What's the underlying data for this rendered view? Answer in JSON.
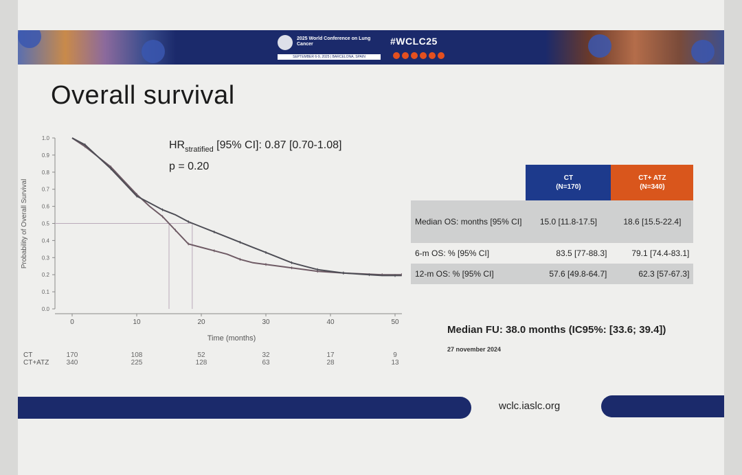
{
  "banner": {
    "conference_name": "2025 World Conference on Lung Cancer",
    "dates_location": "SEPTEMBER 6-9, 2025 | BARCELONA, SPAIN",
    "hashtag": "#WCLC25",
    "social_icons": [
      "facebook-icon",
      "linkedin-icon",
      "x-icon",
      "instagram-icon",
      "youtube-icon",
      "flickr-icon"
    ],
    "colors": {
      "navy": "#1b2a6b",
      "accent": "#e3501f"
    }
  },
  "slide": {
    "title": "Overall survival",
    "median_fu": "Median FU: 38.0 months (IC95%: [33.6; 39.4])",
    "date": "27 november 2024",
    "url": "wclc.iaslc.org"
  },
  "chart_data": {
    "type": "line",
    "title": "",
    "xlabel": "Time (months)",
    "ylabel": "Probability of Overall Survival",
    "xlim": [
      0,
      52
    ],
    "ylim": [
      0,
      1.0
    ],
    "xticks": [
      0,
      10,
      20,
      30,
      40,
      50
    ],
    "yticks": [
      "0.0",
      "0.1",
      "0.2",
      "0.3",
      "0.4",
      "0.5",
      "0.6",
      "0.7",
      "0.8",
      "0.9",
      "1.0"
    ],
    "grid": false,
    "hr_label": "HR",
    "hr_subscript": "stratified",
    "hr_value": " [95% CI]: 0.87 [0.70-1.08]",
    "p_value": "p = 0.20",
    "median_guides": {
      "y": 0.5,
      "x": [
        15.0,
        18.6
      ]
    },
    "series": [
      {
        "color": "#6e5a64",
        "x": [
          0,
          2,
          4,
          6,
          8,
          10,
          12,
          14,
          15,
          16,
          17,
          18,
          20,
          22,
          24,
          26,
          28,
          30,
          32,
          34,
          36,
          38,
          40,
          42,
          45,
          48,
          50,
          51
        ],
        "values": [
          1.0,
          0.95,
          0.89,
          0.83,
          0.75,
          0.67,
          0.6,
          0.54,
          0.5,
          0.46,
          0.42,
          0.38,
          0.36,
          0.34,
          0.32,
          0.29,
          0.27,
          0.26,
          0.25,
          0.24,
          0.23,
          0.22,
          0.215,
          0.21,
          0.205,
          0.2,
          0.2,
          0.2
        ]
      },
      {
        "color": "#4d4d55",
        "x": [
          0,
          2,
          4,
          6,
          8,
          10,
          12,
          14,
          16,
          18,
          20,
          22,
          24,
          26,
          28,
          30,
          32,
          34,
          36,
          38,
          40,
          42,
          44,
          46,
          48,
          50,
          51
        ],
        "values": [
          1.0,
          0.96,
          0.89,
          0.82,
          0.74,
          0.66,
          0.62,
          0.58,
          0.55,
          0.51,
          0.48,
          0.45,
          0.42,
          0.39,
          0.36,
          0.33,
          0.3,
          0.27,
          0.25,
          0.23,
          0.22,
          0.21,
          0.205,
          0.2,
          0.195,
          0.195,
          0.195
        ]
      }
    ],
    "risk_table": {
      "rows": [
        {
          "label": "CT",
          "values": [
            "170",
            "108",
            "52",
            "32",
            "17",
            "9"
          ]
        },
        {
          "label": "CT+ATZ",
          "values": [
            "340",
            "225",
            "128",
            "63",
            "28",
            "13"
          ]
        }
      ]
    }
  },
  "table": {
    "headers": [
      {
        "line1": "CT",
        "line2": "(N=170)"
      },
      {
        "line1": "CT+ ATZ",
        "line2": "(N=340)"
      }
    ],
    "rows": [
      {
        "label": "Median OS: months [95% CI]",
        "ct": "15.0 [11.8-17.5]",
        "atz": "18.6 [15.5-22.4]"
      },
      {
        "label": "6-m OS: % [95% CI]",
        "ct": "83.5 [77-88.3]",
        "atz": "79.1 [74.4-83.1]"
      },
      {
        "label": "12-m OS: % [95% CI]",
        "ct": "57.6 [49.8-64.7]",
        "atz": "62.3 [57-67.3]"
      }
    ]
  }
}
